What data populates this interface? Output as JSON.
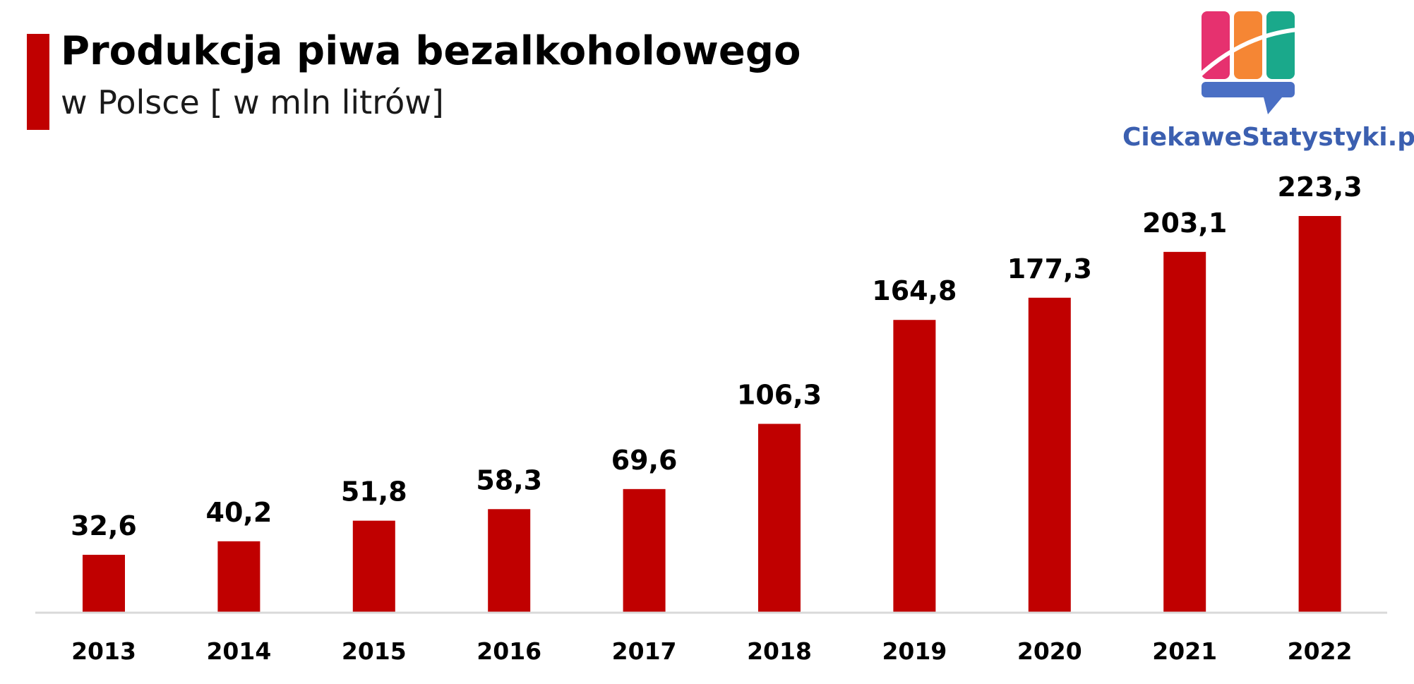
{
  "header": {
    "title": "Produkcja piwa bezalkoholowego",
    "subtitle": "w Polsce [ w mln litrów]"
  },
  "logo": {
    "text": "CiekaweStatystyki.pl",
    "colors": [
      "#e6316f",
      "#f58634",
      "#1aa98b",
      "#4a6fc4"
    ]
  },
  "colors": {
    "accent": "#c00000",
    "bar": "#c00000",
    "axis": "#d9d9d9",
    "logo_text": "#3b5fb0"
  },
  "chart_data": {
    "type": "bar",
    "categories": [
      "2013",
      "2014",
      "2015",
      "2016",
      "2017",
      "2018",
      "2019",
      "2020",
      "2021",
      "2022"
    ],
    "values": [
      32.6,
      40.2,
      51.8,
      58.3,
      69.6,
      106.3,
      164.8,
      177.3,
      203.1,
      223.3
    ],
    "value_labels": [
      "32,6",
      "40,2",
      "51,8",
      "58,3",
      "69,6",
      "106,3",
      "164,8",
      "177,3",
      "203,1",
      "223,3"
    ],
    "title": "Produkcja piwa bezalkoholowego",
    "subtitle": "w Polsce [ w mln litrów]",
    "xlabel": "",
    "ylabel": "",
    "ylim": [
      0,
      223.3
    ],
    "grid": false,
    "legend": "none"
  }
}
